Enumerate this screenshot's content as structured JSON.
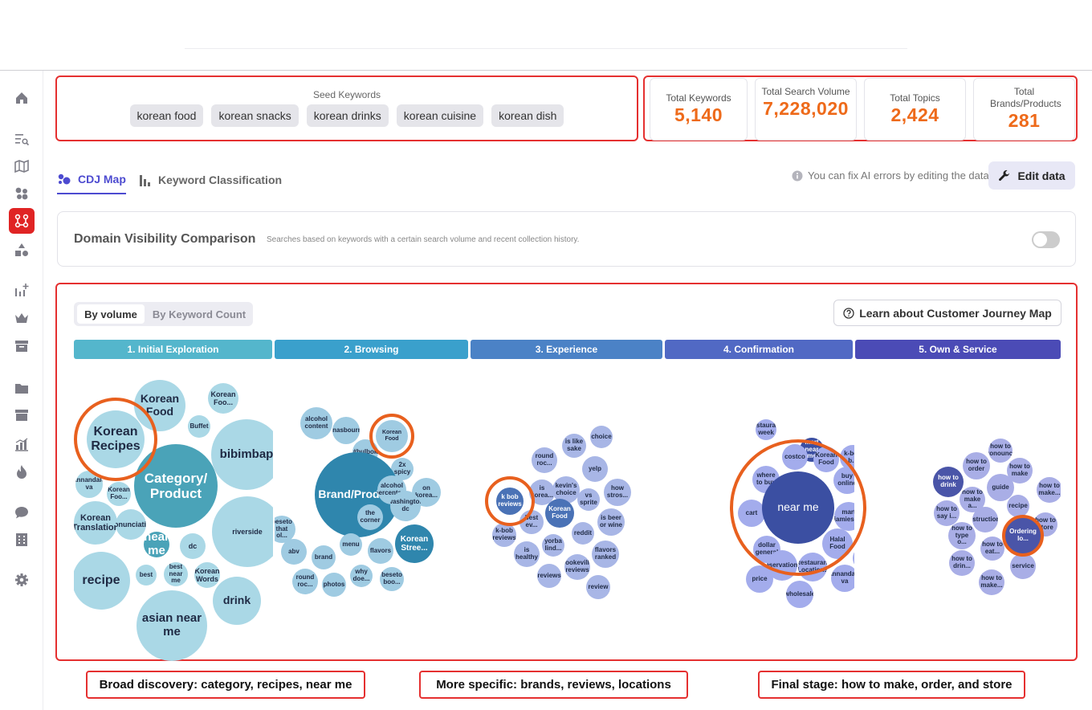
{
  "sidebar": {
    "icons": [
      "home-icon",
      "search-list-icon",
      "map-icon",
      "bubbles-icon",
      "journey-icon",
      "shapes-icon",
      "sparkle-chart-icon",
      "crown-icon",
      "archive-icon",
      "folder-icon",
      "box-icon",
      "bar-chart-icon",
      "fire-icon",
      "chat-icon",
      "building-icon",
      "gear-icon"
    ],
    "active": "journey-icon",
    "active_color": "#e02424"
  },
  "seed": {
    "label": "Seed Keywords",
    "chips": [
      "korean food",
      "korean snacks",
      "korean drinks",
      "korean cuisine",
      "korean dish"
    ]
  },
  "stats": [
    {
      "title": "Total Keywords",
      "value": "5,140"
    },
    {
      "title": "Total Search Volume",
      "value": "7,228,020"
    },
    {
      "title": "Total Topics",
      "value": "2,424"
    },
    {
      "title": "Total Brands/Products",
      "value": "281"
    }
  ],
  "tabs": [
    {
      "label": "CDJ Map",
      "active": true
    },
    {
      "label": "Keyword Classification",
      "active": false
    }
  ],
  "hint": "You can fix AI errors by editing the data.",
  "edit_label": "Edit data",
  "domain_visibility": {
    "title": "Domain Visibility Comparison",
    "desc": "Searches based on keywords with a certain search volume and recent collection history.",
    "enabled": false
  },
  "map": {
    "segment": [
      "By volume",
      "By Keyword Count"
    ],
    "segment_selected": "By volume",
    "learn_label": "Learn about Customer Journey Map",
    "stages": [
      {
        "label": "1. Initial Exploration",
        "color": "#54b6cc"
      },
      {
        "label": "2. Browsing",
        "color": "#3aa0cc"
      },
      {
        "label": "3. Experience",
        "color": "#4b82c6"
      },
      {
        "label": "4. Confirmation",
        "color": "#5169c4"
      },
      {
        "label": "5. Own & Service",
        "color": "#4b4bb6"
      }
    ],
    "clusters": [
      {
        "bubbles": [
          {
            "t": "Korean Recipes",
            "d": 1
          },
          {
            "t": "Korean Food",
            "d": 1
          },
          {
            "t": "Korean Foo...",
            "d": 1
          },
          {
            "t": "Buffet",
            "d": 1
          },
          {
            "t": "bibimbap",
            "d": 1
          },
          {
            "t": "Category/ Product",
            "d": 2
          },
          {
            "t": "annandale va",
            "d": 1
          },
          {
            "t": "Korean Foo...",
            "d": 1
          },
          {
            "t": "Korean Translation",
            "d": 1
          },
          {
            "t": "pronunciation",
            "d": 1
          },
          {
            "t": "near me",
            "d": 2
          },
          {
            "t": "dc",
            "d": 1
          },
          {
            "t": "riverside",
            "d": 1
          },
          {
            "t": "recipe",
            "d": 1
          },
          {
            "t": "best",
            "d": 1
          },
          {
            "t": "best near me",
            "d": 1
          },
          {
            "t": "Korean Words",
            "d": 1
          },
          {
            "t": "drink",
            "d": 1
          },
          {
            "t": "asian near me",
            "d": 1
          }
        ]
      },
      {
        "bubbles": [
          {
            "t": "alcohol content",
            "d": 1
          },
          {
            "t": "tanasbourne",
            "d": 1
          },
          {
            "t": "Korean Food",
            "d": 1
          },
          {
            "t": "#bulbok",
            "d": 1
          },
          {
            "t": "2x spicy",
            "d": 1
          },
          {
            "t": "Brand/Product",
            "d": 2
          },
          {
            "t": "alcohol percentage",
            "d": 1
          },
          {
            "t": "on korea...",
            "d": 1
          },
          {
            "t": "washington dc",
            "d": 1
          },
          {
            "t": "the corner",
            "d": 1
          },
          {
            "t": "Korean Stree...",
            "d": 2
          },
          {
            "t": "beseto that ol...",
            "d": 1
          },
          {
            "t": "abv",
            "d": 1
          },
          {
            "t": "brand",
            "d": 1
          },
          {
            "t": "menu",
            "d": 1
          },
          {
            "t": "flavors",
            "d": 1
          },
          {
            "t": "why doe...",
            "d": 1
          },
          {
            "t": "beseto boo...",
            "d": 1
          },
          {
            "t": "round roc...",
            "d": 1
          },
          {
            "t": "photos",
            "d": 1
          }
        ]
      },
      {
        "bubbles": [
          {
            "t": "is like sake",
            "d": 1
          },
          {
            "t": "choice",
            "d": 1
          },
          {
            "t": "round roc...",
            "d": 1
          },
          {
            "t": "yelp",
            "d": 1
          },
          {
            "t": "kevin's choice",
            "d": 1
          },
          {
            "t": "is korea...",
            "d": 1
          },
          {
            "t": "k bob reviews",
            "d": 2
          },
          {
            "t": "how stros...",
            "d": 1
          },
          {
            "t": "vs sprite",
            "d": 1
          },
          {
            "t": "Korean Food",
            "d": 2
          },
          {
            "t": "best ev...",
            "d": 1
          },
          {
            "t": "is beer or wine",
            "d": 1
          },
          {
            "t": "k-bob reviews",
            "d": 1
          },
          {
            "t": "reddit",
            "d": 1
          },
          {
            "t": "yorba lind...",
            "d": 1
          },
          {
            "t": "flavors ranked",
            "d": 1
          },
          {
            "t": "is healthy",
            "d": 1
          },
          {
            "t": "cookeville reviews",
            "d": 1
          },
          {
            "t": "reviews",
            "d": 1
          },
          {
            "t": "review",
            "d": 1
          }
        ]
      },
      {
        "bubbles": [
          {
            "t": "restaurant week",
            "d": 1
          },
          {
            "t": "mart near me",
            "d": 2
          },
          {
            "t": "costco",
            "d": 1
          },
          {
            "t": "Korean Food",
            "d": 1
          },
          {
            "t": "k-bob b...",
            "d": 1
          },
          {
            "t": "where to buy",
            "d": 1
          },
          {
            "t": "buy online",
            "d": 1
          },
          {
            "t": "locations",
            "d": 1
          },
          {
            "t": "cart",
            "d": 1
          },
          {
            "t": "near me",
            "d": 2
          },
          {
            "t": "mart jamieso...",
            "d": 1
          },
          {
            "t": "delivery",
            "d": 1
          },
          {
            "t": "dollar general",
            "d": 1
          },
          {
            "t": "Halal Food",
            "d": 1
          },
          {
            "t": "k bob b...",
            "d": 1
          },
          {
            "t": "reservations",
            "d": 1
          },
          {
            "t": "Restaurant Locations",
            "d": 1
          },
          {
            "t": "price",
            "d": 1
          },
          {
            "t": "annandale va",
            "d": 1
          },
          {
            "t": "wholesale",
            "d": 1
          }
        ]
      },
      {
        "bubbles": [
          {
            "t": "how to pronounc...",
            "d": 1
          },
          {
            "t": "how to order",
            "d": 1
          },
          {
            "t": "how to make",
            "d": 1
          },
          {
            "t": "how to drink",
            "d": 2
          },
          {
            "t": "guide",
            "d": 1
          },
          {
            "t": "how to make...",
            "d": 1
          },
          {
            "t": "how to make a...",
            "d": 1
          },
          {
            "t": "recipe",
            "d": 1
          },
          {
            "t": "how to say i...",
            "d": 1
          },
          {
            "t": "instructions",
            "d": 1
          },
          {
            "t": "how to store",
            "d": 1
          },
          {
            "t": "how to type o...",
            "d": 1
          },
          {
            "t": "Ordering lo...",
            "d": 2
          },
          {
            "t": "how to eat...",
            "d": 1
          },
          {
            "t": "how to drin...",
            "d": 1
          },
          {
            "t": "service",
            "d": 1
          },
          {
            "t": "how to make...",
            "d": 1
          }
        ]
      }
    ]
  },
  "captions": [
    "Broad discovery: category, recipes, near me",
    "More specific: brands, reviews, locations",
    "Final stage: how to make, order, and store"
  ]
}
